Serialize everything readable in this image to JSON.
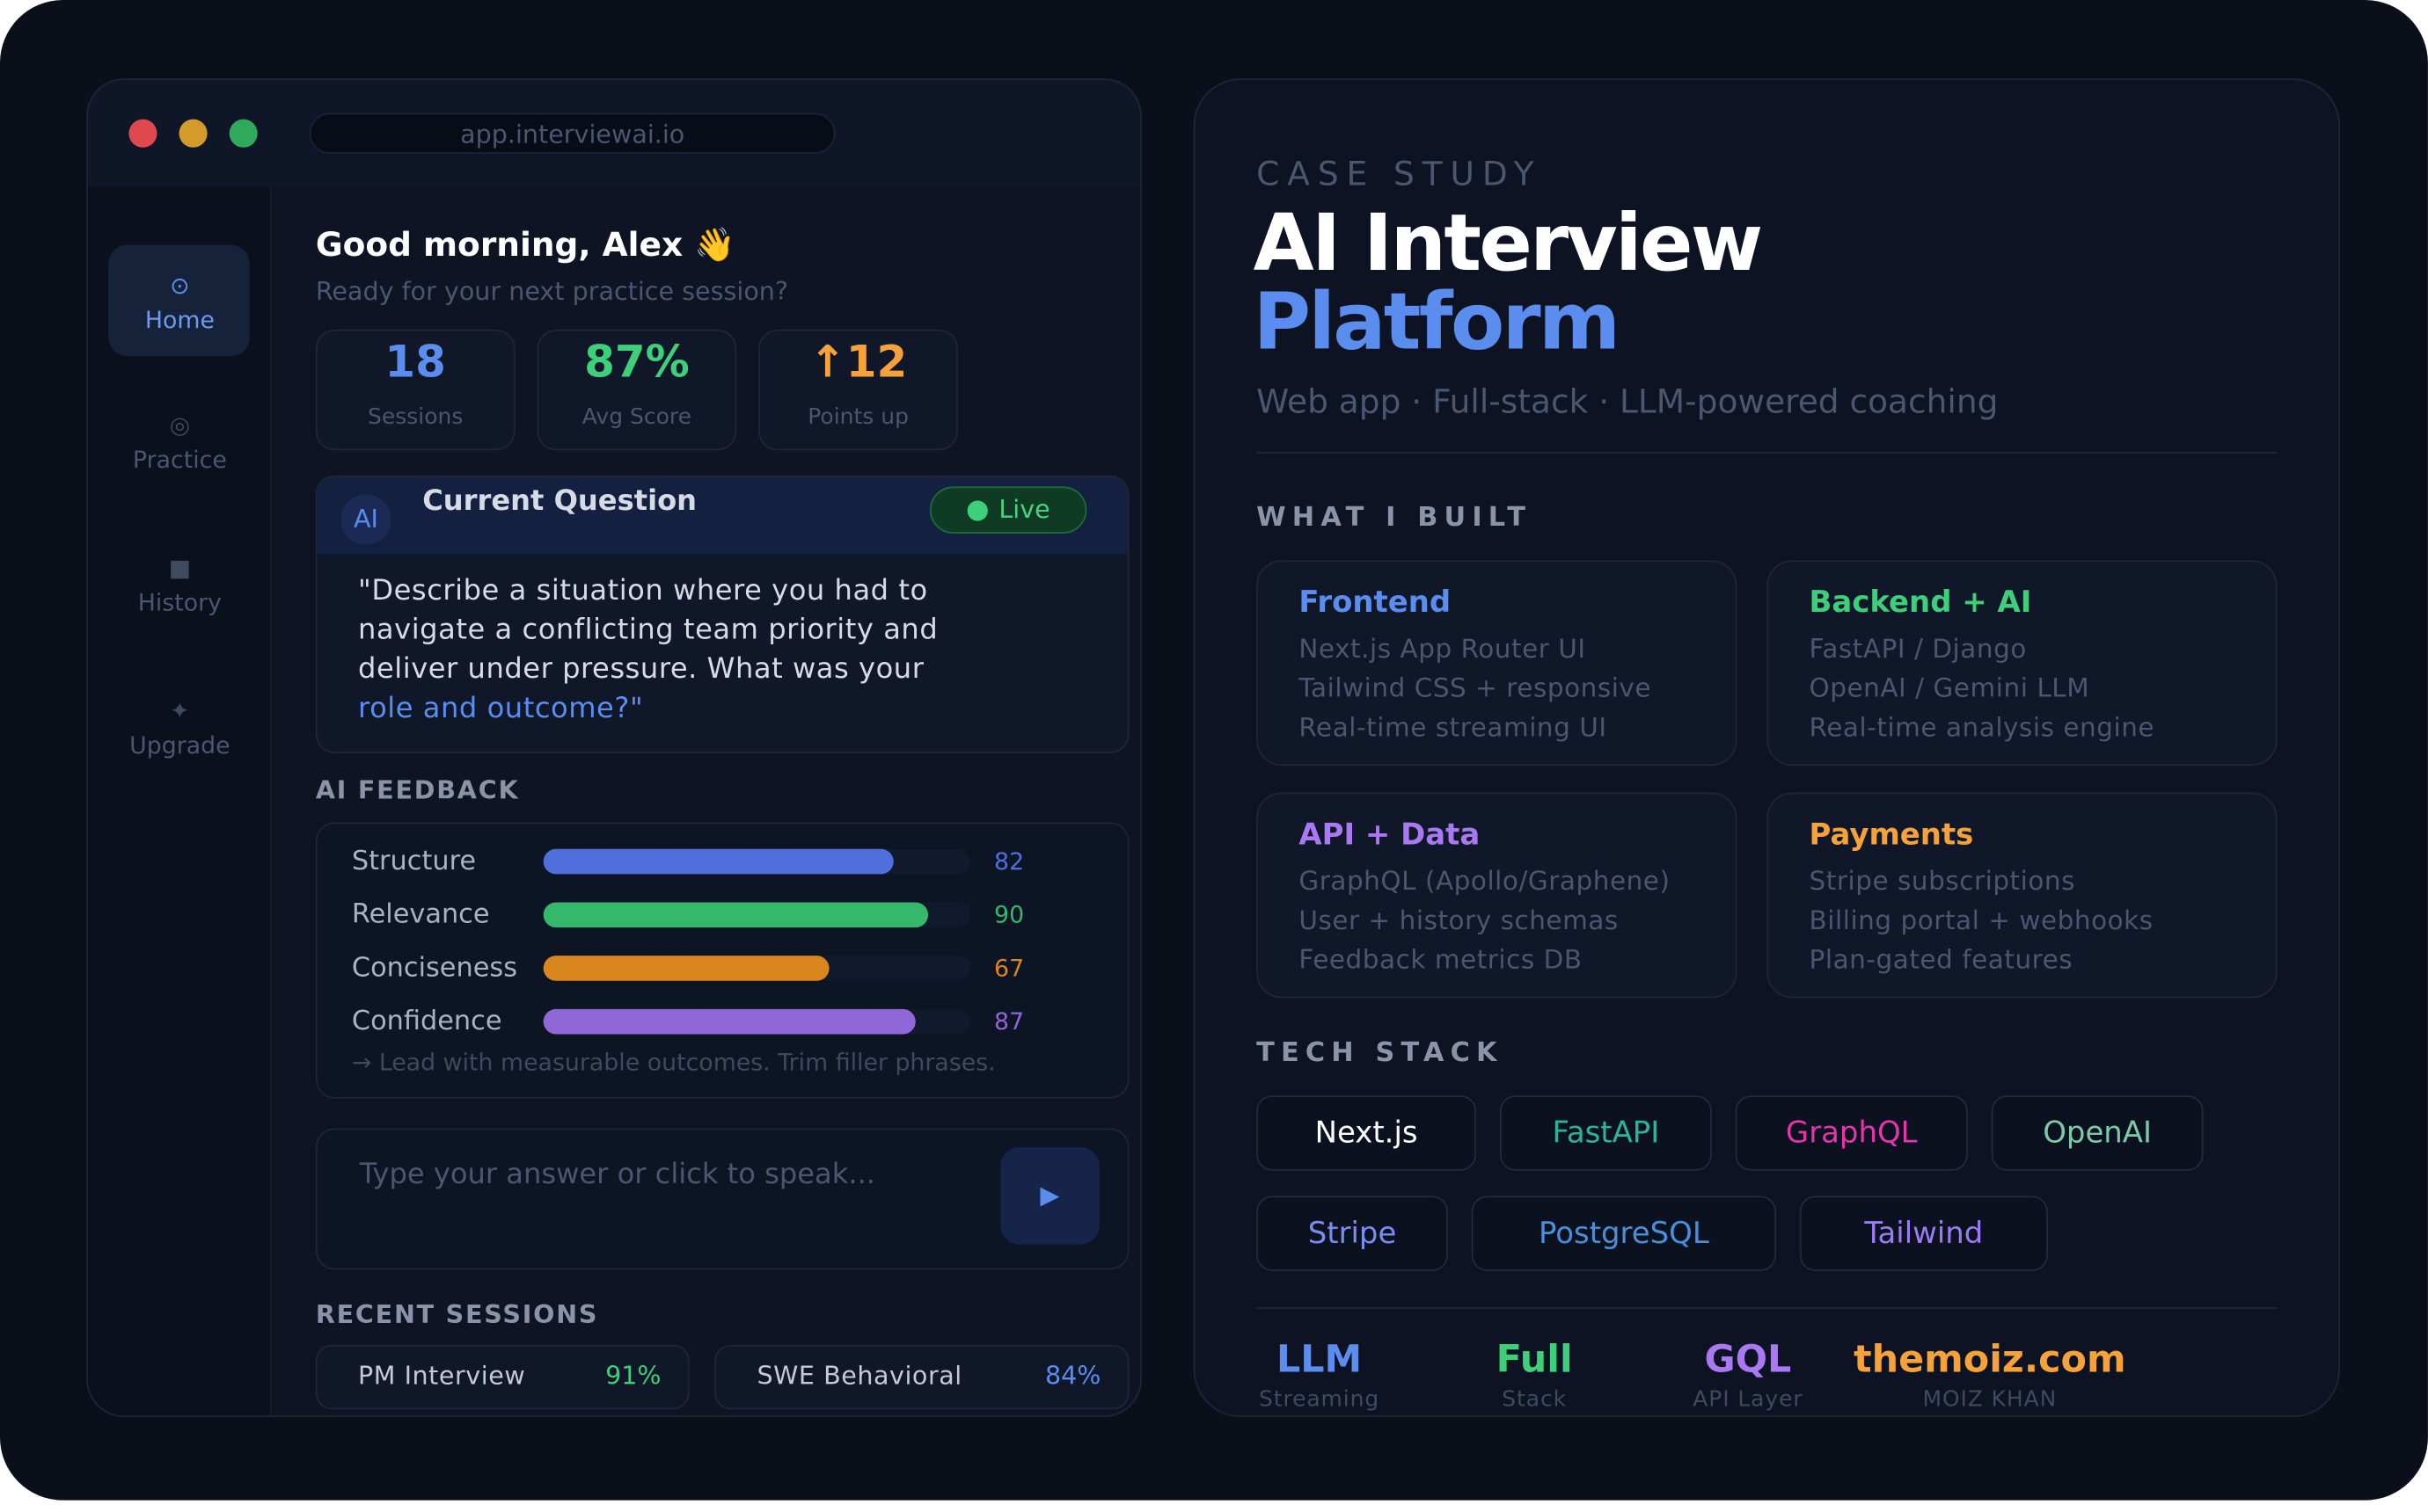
{
  "window": {
    "url": "app.interviewai.io"
  },
  "sidebar": {
    "items": [
      {
        "icon": "⊙",
        "label": "Home"
      },
      {
        "icon": "◎",
        "label": "Practice"
      },
      {
        "icon": "■",
        "label": "History"
      },
      {
        "icon": "✦",
        "label": "Upgrade"
      }
    ]
  },
  "greeting": {
    "title": "Good morning, Alex 👋",
    "subtitle": "Ready for your next practice session?"
  },
  "stats": [
    {
      "value": "18",
      "label": "Sessions",
      "color": "#5b8def"
    },
    {
      "value": "87%",
      "label": "Avg Score",
      "color": "#3ecf7a"
    },
    {
      "value": "↑12",
      "label": "Points up",
      "color": "#f5a23a"
    }
  ],
  "question": {
    "badge": "AI",
    "title": "Current Question",
    "status": "Live",
    "lines": [
      "\"Describe a situation where you had to",
      "navigate a conflicting team priority and",
      "deliver under pressure. What was your"
    ],
    "highlight": "role and outcome?\""
  },
  "feedback": {
    "heading": "AI FEEDBACK",
    "xlim": [
      0,
      100
    ],
    "metrics": [
      {
        "name": "Structure",
        "value": 82,
        "color": "#4f6fdc"
      },
      {
        "name": "Relevance",
        "value": 90,
        "color": "#35b86b"
      },
      {
        "name": "Conciseness",
        "value": 67,
        "color": "#d9861f"
      },
      {
        "name": "Confidence",
        "value": 87,
        "color": "#8f67d6"
      }
    ],
    "tip": "→ Lead with measurable outcomes. Trim filler phrases."
  },
  "answer": {
    "placeholder": "Type your answer or click to speak...",
    "send": "▶"
  },
  "recent": {
    "heading": "RECENT SESSIONS",
    "items": [
      {
        "name": "PM Interview",
        "score": "91%",
        "color": "#3ecf7a"
      },
      {
        "name": "SWE Behavioral",
        "score": "84%",
        "color": "#5b8def"
      }
    ]
  },
  "case_study": {
    "eyebrow": "CASE STUDY",
    "title_line1": "AI Interview",
    "title_line2": "Platform",
    "subtitle": "Web app · Full-stack · LLM-powered coaching",
    "built_heading": "WHAT I BUILT",
    "cards": [
      {
        "title": "Frontend",
        "color": "#5b8def",
        "lines": [
          "Next.js App Router UI",
          "Tailwind CSS + responsive",
          "Real-time streaming UI"
        ]
      },
      {
        "title": "Backend + AI",
        "color": "#3ecf7a",
        "lines": [
          "FastAPI / Django",
          "OpenAI / Gemini LLM",
          "Real-time analysis engine"
        ]
      },
      {
        "title": "API + Data",
        "color": "#a879f0",
        "lines": [
          "GraphQL (Apollo/Graphene)",
          "User + history schemas",
          "Feedback metrics DB"
        ]
      },
      {
        "title": "Payments",
        "color": "#f5a23a",
        "lines": [
          "Stripe subscriptions",
          "Billing portal + webhooks",
          "Plan-gated features"
        ]
      }
    ],
    "stack_heading": "TECH STACK",
    "stack": [
      {
        "name": "Next.js",
        "color": "#ffffff"
      },
      {
        "name": "FastAPI",
        "color": "#2bb596"
      },
      {
        "name": "GraphQL",
        "color": "#e535ab"
      },
      {
        "name": "OpenAI",
        "color": "#7fc9a8"
      },
      {
        "name": "Stripe",
        "color": "#7b8cf5"
      },
      {
        "name": "PostgreSQL",
        "color": "#4a90d9"
      },
      {
        "name": "Tailwind",
        "color": "#9b7cf5"
      }
    ],
    "footer": [
      {
        "value": "LLM",
        "label": "Streaming",
        "color": "#5b8def"
      },
      {
        "value": "Full",
        "label": "Stack",
        "color": "#3ecf7a"
      },
      {
        "value": "GQL",
        "label": "API Layer",
        "color": "#a879f0"
      },
      {
        "value": "themoiz.com",
        "label": "MOIZ KHAN",
        "color": "#f5a23a"
      }
    ]
  }
}
